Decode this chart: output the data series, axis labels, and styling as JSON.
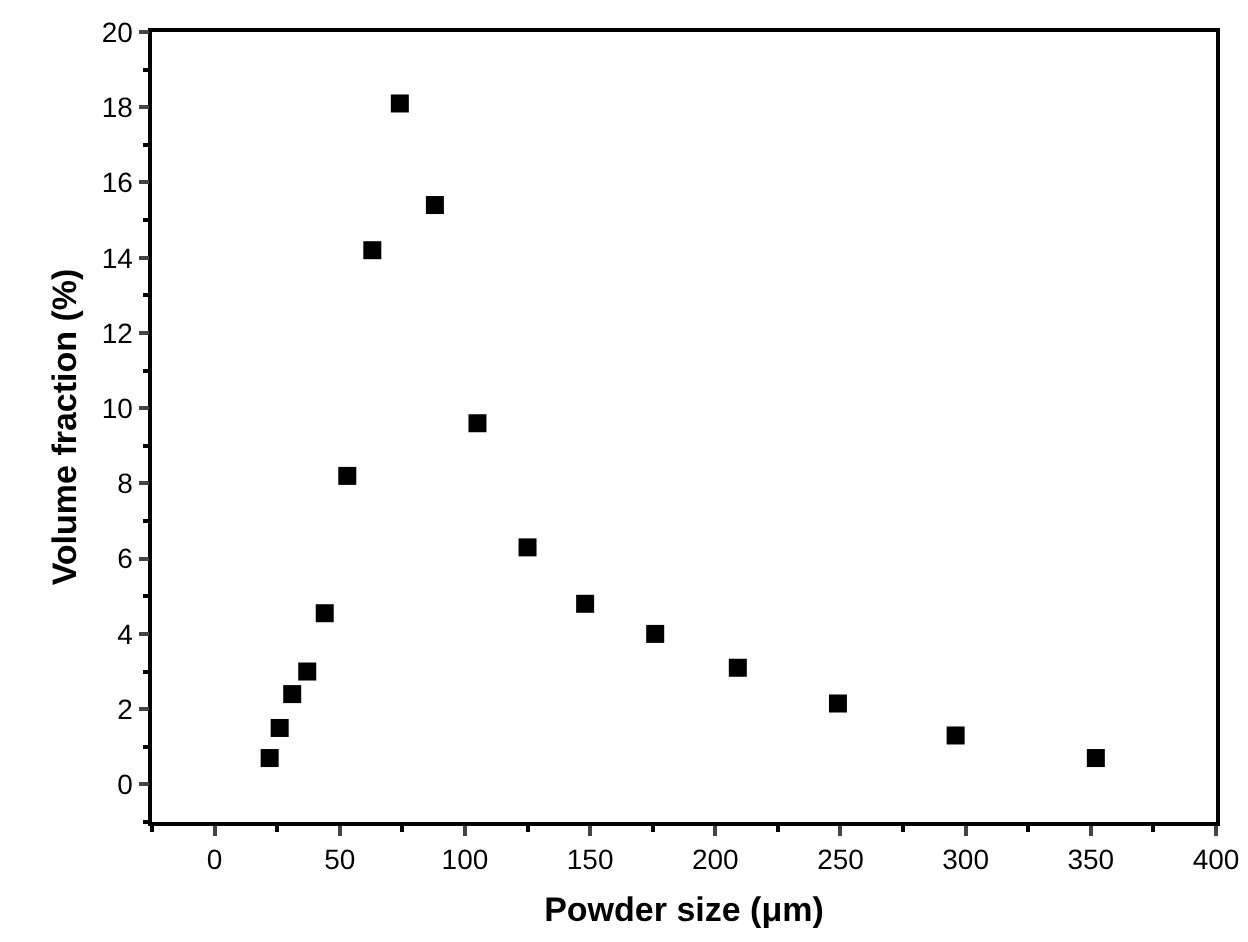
{
  "chart_data": {
    "type": "scatter",
    "xlabel": "Powder size (μm)",
    "ylabel": "Volume fraction (%)",
    "x": [
      22,
      26,
      31,
      37,
      44,
      53,
      63,
      74,
      88,
      105,
      125,
      148,
      176,
      209,
      249,
      296,
      352
    ],
    "series": [
      {
        "color": "#000000",
        "values": [
          0.7,
          1.5,
          2.4,
          3.0,
          4.55,
          8.2,
          14.2,
          18.1,
          15.4,
          9.6,
          6.3,
          4.8,
          4.0,
          3.1,
          2.15,
          1.3,
          0.7
        ]
      }
    ],
    "xlim": [
      -25,
      400
    ],
    "xticks": [
      0,
      50,
      100,
      150,
      200,
      250,
      300,
      350,
      400
    ],
    "ylim": [
      -1,
      20
    ],
    "yticks": [
      0,
      2,
      4,
      6,
      8,
      10,
      12,
      14,
      16,
      18,
      20
    ],
    "marker": "square"
  }
}
